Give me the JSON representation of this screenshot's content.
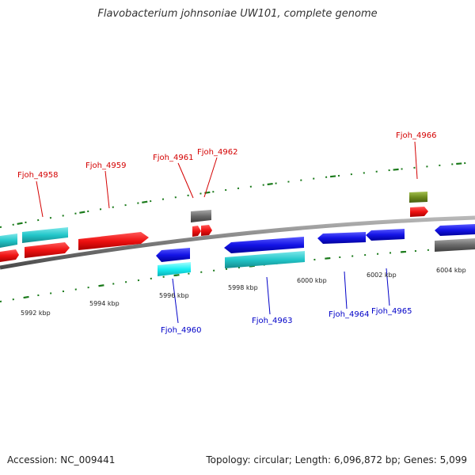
{
  "title": "Flavobacterium johnsoniae UW101, complete genome",
  "footer": {
    "accession": "Accession: NC_009441",
    "topology": "Topology: circular; Length: 6,096,872 bp; Genes: 5,099"
  },
  "colors": {
    "forward_cds": "#e8121a",
    "reverse_cds": "#1010e0",
    "forward_gene": "#27c9cc",
    "reverse_gene": "#27c9cc",
    "cyan_bright": "#10eaf0",
    "other": "#6a6a6a",
    "rna": "#6e8c1e",
    "tick": "#1a7a1a",
    "backbone": "#7a7a7a",
    "label_forward": "#d40000",
    "label_reverse": "#0000c8"
  },
  "kbp_labels": [
    "5992 kbp",
    "5994 kbp",
    "5996 kbp",
    "5998 kbp",
    "6000 kbp",
    "6002 kbp",
    "6004 kbp"
  ],
  "gene_labels": {
    "forward": [
      "Fjoh_4958",
      "Fjoh_4959",
      "Fjoh_4961",
      "Fjoh_4962",
      "Fjoh_4966"
    ],
    "reverse": [
      "Fjoh_4960",
      "Fjoh_4963",
      "Fjoh_4964",
      "Fjoh_4965"
    ]
  }
}
